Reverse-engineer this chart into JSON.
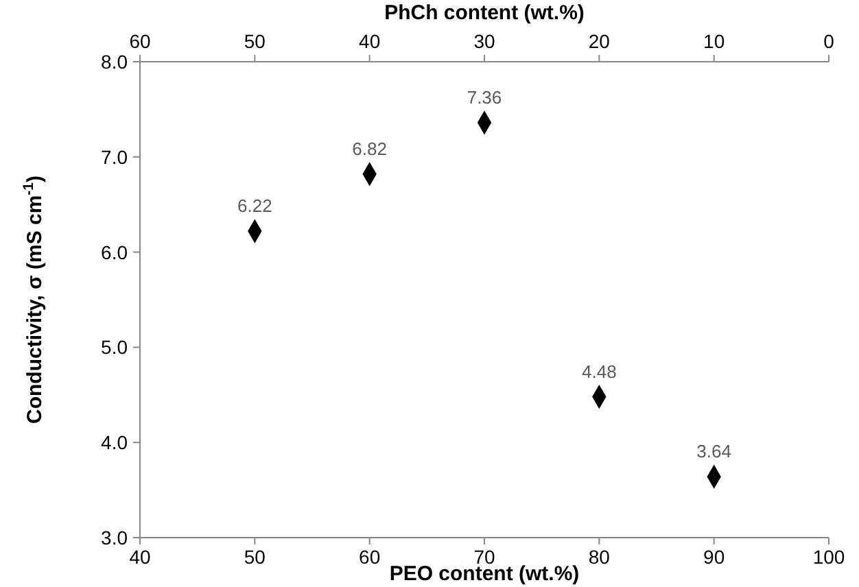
{
  "chart_data": {
    "type": "scatter",
    "xlabel": "PEO content (wt.%)",
    "x2label": "PhCh content (wt.%)",
    "ylabel": "Conductivity, σ (mS cm$^{-1}$)",
    "x": [
      50,
      60,
      70,
      80,
      90
    ],
    "series": [
      {
        "color": "#000000",
        "values": [
          6.22,
          6.82,
          7.36,
          4.48,
          3.64
        ]
      }
    ],
    "marker": "diamond",
    "data_labels": true,
    "xlim": [
      40,
      100
    ],
    "xticks": [
      40,
      50,
      60,
      70,
      80,
      90,
      100
    ],
    "x2lim": [
      60,
      0
    ],
    "x2ticks": [
      60,
      50,
      40,
      30,
      20,
      10,
      0
    ],
    "ylim": [
      3,
      8
    ],
    "yticks": [
      {
        "value": 3,
        "label": "3.0"
      },
      {
        "value": 4,
        "label": "4.0"
      },
      {
        "value": 5,
        "label": "5.0"
      },
      {
        "value": 6,
        "label": "6.0"
      },
      {
        "value": 7,
        "label": "7.0"
      },
      {
        "value": 8,
        "label": "8.0"
      }
    ]
  }
}
